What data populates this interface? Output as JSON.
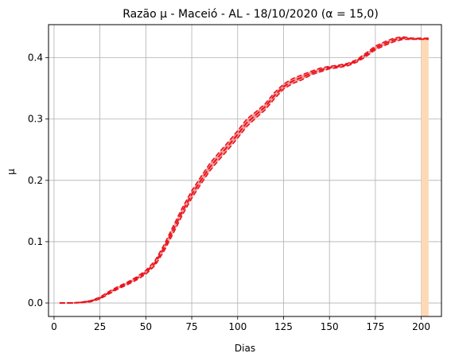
{
  "chart_data": {
    "type": "line",
    "title": "Razão μ - Maceió - AL - 18/10/2020 (α = 15,0)",
    "xlabel": "Dias",
    "ylabel": "μ",
    "xlim": [
      -3,
      211
    ],
    "ylim": [
      -0.022,
      0.454
    ],
    "xticks": [
      0,
      25,
      50,
      75,
      100,
      125,
      150,
      175,
      200
    ],
    "yticks": [
      0.0,
      0.1,
      0.2,
      0.3,
      0.4
    ],
    "xtick_labels": [
      "0",
      "25",
      "50",
      "75",
      "100",
      "125",
      "150",
      "175",
      "200"
    ],
    "ytick_labels": [
      "0.0",
      "0.1",
      "0.2",
      "0.3",
      "0.4"
    ],
    "grid": true,
    "highlight_band": {
      "x": [
        200,
        204
      ],
      "color": "#fdd9b5"
    },
    "band_color": "#f08080",
    "line_color": "#e8141c",
    "x": [
      3,
      10,
      15,
      20,
      25,
      30,
      35,
      40,
      45,
      50,
      55,
      60,
      65,
      70,
      75,
      80,
      85,
      90,
      95,
      100,
      105,
      110,
      115,
      120,
      125,
      130,
      135,
      140,
      145,
      150,
      155,
      160,
      165,
      170,
      175,
      180,
      185,
      190,
      195,
      200,
      204
    ],
    "y": [
      0.0,
      0.0,
      0.001,
      0.003,
      0.008,
      0.017,
      0.025,
      0.032,
      0.04,
      0.05,
      0.065,
      0.09,
      0.12,
      0.15,
      0.177,
      0.2,
      0.222,
      0.24,
      0.257,
      0.275,
      0.294,
      0.307,
      0.32,
      0.338,
      0.353,
      0.362,
      0.368,
      0.375,
      0.38,
      0.384,
      0.386,
      0.389,
      0.395,
      0.405,
      0.416,
      0.423,
      0.429,
      0.432,
      0.431,
      0.431,
      0.431
    ],
    "y_upper": [
      0.0,
      0.0,
      0.0015,
      0.004,
      0.0095,
      0.019,
      0.027,
      0.034,
      0.0425,
      0.053,
      0.069,
      0.095,
      0.126,
      0.156,
      0.183,
      0.206,
      0.228,
      0.246,
      0.263,
      0.281,
      0.3,
      0.312,
      0.325,
      0.343,
      0.357,
      0.366,
      0.372,
      0.378,
      0.383,
      0.386,
      0.388,
      0.391,
      0.397,
      0.408,
      0.419,
      0.426,
      0.432,
      0.434,
      0.432,
      0.432,
      0.432
    ],
    "y_lower": [
      0.0,
      0.0,
      0.0005,
      0.002,
      0.0065,
      0.015,
      0.023,
      0.03,
      0.0375,
      0.047,
      0.061,
      0.085,
      0.114,
      0.144,
      0.171,
      0.194,
      0.216,
      0.234,
      0.251,
      0.269,
      0.288,
      0.302,
      0.315,
      0.333,
      0.349,
      0.358,
      0.364,
      0.372,
      0.377,
      0.382,
      0.384,
      0.387,
      0.393,
      0.402,
      0.413,
      0.42,
      0.426,
      0.43,
      0.43,
      0.43,
      0.43
    ]
  }
}
